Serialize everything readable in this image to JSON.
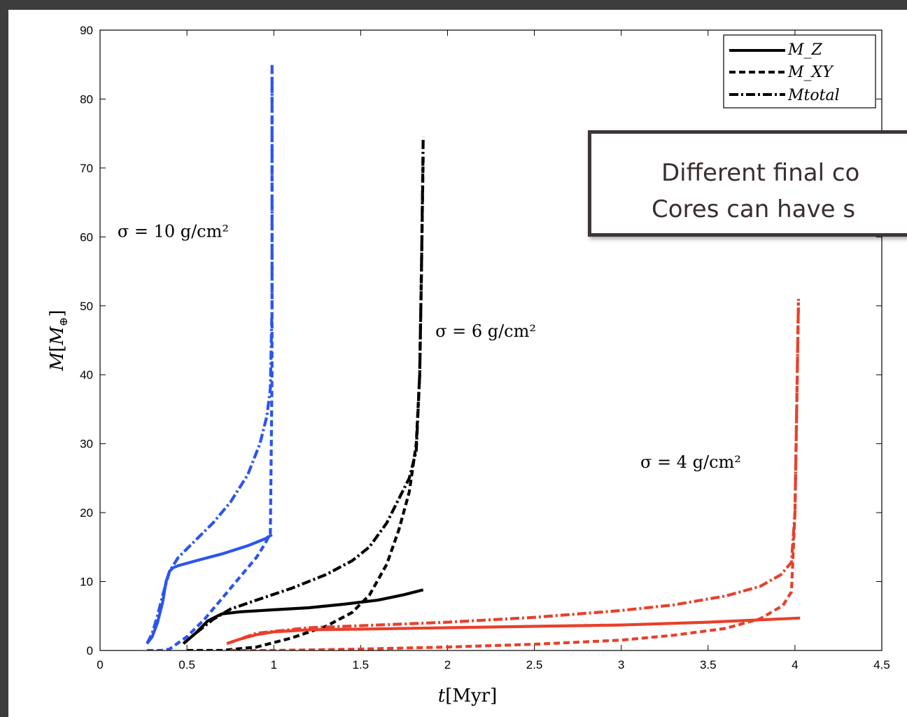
{
  "chart_data": {
    "type": "line",
    "xlabel": "t[Myr]",
    "ylabel": "M[M_⊕]",
    "xlim": [
      0,
      4.5
    ],
    "ylim": [
      0,
      90
    ],
    "xticks": [
      0,
      0.5,
      1,
      1.5,
      2,
      2.5,
      3,
      3.5,
      4,
      4.5
    ],
    "yticks": [
      0,
      10,
      20,
      30,
      40,
      50,
      60,
      70,
      80,
      90
    ],
    "legend": {
      "position": "top-right",
      "entries": [
        {
          "label": "M_Z",
          "style": "solid"
        },
        {
          "label": "M_XY",
          "style": "dashed"
        },
        {
          "label": "Mtotal",
          "style": "dashdot"
        }
      ]
    },
    "annotations": [
      {
        "text": "σ = 10 g/cm²",
        "x": 0.1,
        "y": 60
      },
      {
        "text": "σ = 6 g/cm²",
        "x": 1.93,
        "y": 45.5
      },
      {
        "text": "σ = 4 g/cm²",
        "x": 3.11,
        "y": 26.5
      }
    ],
    "series": [
      {
        "color": "#2b55ee",
        "style": "solid",
        "x": [
          0.27,
          0.3,
          0.33,
          0.36,
          0.38,
          0.4,
          0.42,
          0.45,
          0.55,
          0.7,
          0.85,
          0.95,
          0.99
        ],
        "y": [
          1,
          2,
          4,
          7,
          10,
          11.5,
          12,
          12.3,
          13,
          14,
          15.2,
          16.2,
          16.8
        ]
      },
      {
        "color": "#2b55ee",
        "style": "dashed",
        "x": [
          0.27,
          0.35,
          0.4,
          0.5,
          0.6,
          0.7,
          0.8,
          0.9,
          0.95,
          0.98,
          0.99,
          0.99
        ],
        "y": [
          0,
          0,
          0.2,
          2,
          4.5,
          7.5,
          10.5,
          13.5,
          15.5,
          17,
          40,
          84
        ]
      },
      {
        "color": "#2b55ee",
        "style": "dashdot",
        "x": [
          0.27,
          0.3,
          0.33,
          0.36,
          0.4,
          0.45,
          0.55,
          0.65,
          0.75,
          0.85,
          0.92,
          0.96,
          0.98,
          0.99,
          0.99
        ],
        "y": [
          1,
          2.5,
          5,
          8,
          11.5,
          13.5,
          16,
          18.5,
          21.5,
          25.5,
          30,
          34,
          38,
          50,
          85
        ]
      },
      {
        "color": "#000000",
        "style": "solid",
        "x": [
          0.48,
          0.55,
          0.62,
          0.7,
          0.8,
          1.0,
          1.2,
          1.4,
          1.6,
          1.75,
          1.86
        ],
        "y": [
          1,
          2.5,
          4.3,
          5.3,
          5.6,
          5.9,
          6.2,
          6.7,
          7.3,
          8.1,
          8.8
        ]
      },
      {
        "color": "#000000",
        "style": "dashed",
        "x": [
          0.5,
          0.7,
          0.9,
          1.1,
          1.3,
          1.45,
          1.55,
          1.65,
          1.72,
          1.78,
          1.82,
          1.84,
          1.85,
          1.86
        ],
        "y": [
          0,
          0,
          0.5,
          1.8,
          3.5,
          5.5,
          8,
          12.5,
          17.5,
          23,
          30,
          40,
          55,
          72
        ]
      },
      {
        "color": "#000000",
        "style": "dashdot",
        "x": [
          0.48,
          0.55,
          0.65,
          0.75,
          0.9,
          1.1,
          1.3,
          1.45,
          1.55,
          1.65,
          1.72,
          1.78,
          1.82,
          1.84,
          1.85,
          1.86
        ],
        "y": [
          1,
          2.5,
          4.5,
          6,
          7.3,
          9,
          11,
          13,
          15,
          18.5,
          22,
          25,
          29,
          40,
          55,
          74.5
        ]
      },
      {
        "color": "#e8402b",
        "style": "solid",
        "x": [
          0.73,
          0.8,
          0.9,
          1.0,
          1.2,
          1.5,
          2.0,
          2.5,
          3.0,
          3.5,
          4.03
        ],
        "y": [
          1,
          1.6,
          2.3,
          2.7,
          3.0,
          3.1,
          3.3,
          3.5,
          3.7,
          4.1,
          4.7
        ]
      },
      {
        "color": "#e8402b",
        "style": "dashed",
        "x": [
          0.75,
          1.0,
          1.5,
          2.0,
          2.5,
          3.0,
          3.3,
          3.6,
          3.8,
          3.93,
          3.98,
          4.0,
          4.01,
          4.02
        ],
        "y": [
          0,
          0,
          0.2,
          0.5,
          0.9,
          1.5,
          2.2,
          3.2,
          4.6,
          6.5,
          8.5,
          20,
          35,
          50.5
        ]
      },
      {
        "color": "#e8402b",
        "style": "dashdot",
        "x": [
          0.73,
          0.9,
          1.2,
          1.5,
          2.0,
          2.5,
          3.0,
          3.3,
          3.6,
          3.8,
          3.92,
          3.98,
          4.0,
          4.01,
          4.02
        ],
        "y": [
          1,
          2.5,
          3.3,
          3.6,
          4.1,
          4.8,
          5.8,
          6.6,
          7.9,
          9.3,
          11,
          12.8,
          20,
          35,
          51
        ]
      }
    ]
  },
  "callout": {
    "line1": "Different final co",
    "line2": "Cores can have s"
  }
}
